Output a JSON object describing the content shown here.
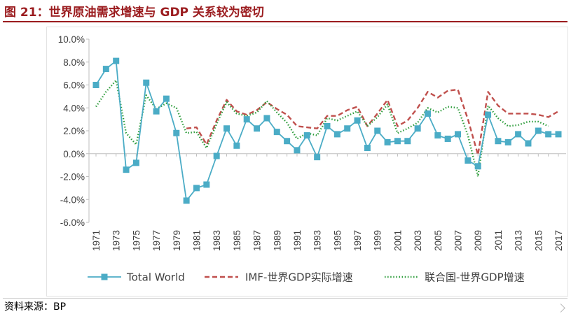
{
  "figure": {
    "title": "图 21：世界原油需求增速与 GDP 关系较为密切",
    "source": "资料来源：BP"
  },
  "colors": {
    "title": "#9b1c1f",
    "total_world": "#4bacc6",
    "imf": "#c0504d",
    "un": "#2e9d3c",
    "axis": "#bfbfbf"
  },
  "chart_data": {
    "type": "line",
    "title": "",
    "xlabel": "",
    "ylabel": "",
    "ylim": [
      -6,
      10
    ],
    "yticks": [
      "-6.0%",
      "-4.0%",
      "-2.0%",
      "0.0%",
      "2.0%",
      "4.0%",
      "6.0%",
      "8.0%",
      "10.0%"
    ],
    "ytick_values": [
      -6,
      -4,
      -2,
      0,
      2,
      4,
      6,
      8,
      10
    ],
    "grid": false,
    "legend_position": "bottom",
    "x": [
      1971,
      1972,
      1973,
      1974,
      1975,
      1976,
      1977,
      1978,
      1979,
      1980,
      1981,
      1982,
      1983,
      1984,
      1985,
      1986,
      1987,
      1988,
      1989,
      1990,
      1991,
      1992,
      1993,
      1994,
      1995,
      1996,
      1997,
      1998,
      1999,
      2000,
      2001,
      2002,
      2003,
      2004,
      2005,
      2006,
      2007,
      2008,
      2009,
      2010,
      2011,
      2012,
      2013,
      2014,
      2015,
      2016,
      2017
    ],
    "xtick_labels": [
      "1971",
      "1973",
      "1975",
      "1977",
      "1979",
      "1981",
      "1983",
      "1985",
      "1987",
      "1989",
      "1991",
      "1993",
      "1995",
      "1997",
      "1999",
      "2001",
      "2003",
      "2005",
      "2007",
      "2009",
      "2011",
      "2013",
      "2015",
      "2017"
    ],
    "series": [
      {
        "name": "Total World",
        "style": "solid-square",
        "values": [
          6.0,
          7.4,
          8.1,
          -1.4,
          -0.8,
          6.2,
          3.7,
          4.8,
          1.8,
          -4.1,
          -3.0,
          -2.7,
          -0.2,
          2.2,
          0.7,
          3.0,
          2.2,
          3.1,
          1.9,
          1.1,
          0.3,
          1.6,
          -0.3,
          2.4,
          1.7,
          2.2,
          2.9,
          0.5,
          2.0,
          1.0,
          1.1,
          1.1,
          2.2,
          3.5,
          1.6,
          1.3,
          1.7,
          -0.6,
          -1.1,
          3.4,
          1.1,
          1.0,
          1.7,
          0.9,
          2.0,
          1.7,
          1.7
        ]
      },
      {
        "name": "IMF-世界GDP实际增速",
        "style": "dashed",
        "values": [
          null,
          null,
          null,
          null,
          null,
          null,
          null,
          null,
          null,
          2.2,
          2.3,
          0.8,
          2.9,
          4.7,
          3.7,
          3.4,
          3.8,
          4.5,
          3.9,
          3.4,
          2.4,
          2.3,
          2.2,
          3.3,
          3.3,
          3.8,
          4.1,
          2.4,
          3.5,
          4.7,
          2.4,
          2.9,
          4.0,
          5.4,
          4.9,
          5.5,
          5.6,
          3.0,
          -0.1,
          5.4,
          4.2,
          3.5,
          3.5,
          3.5,
          3.4,
          3.2,
          3.7
        ]
      },
      {
        "name": "联合国-世界GDP增速",
        "style": "dotted",
        "values": [
          4.1,
          5.4,
          6.4,
          1.8,
          0.8,
          5.1,
          3.9,
          4.4,
          4.0,
          1.8,
          1.9,
          0.5,
          2.6,
          4.5,
          3.5,
          3.3,
          3.6,
          4.6,
          3.6,
          2.7,
          1.3,
          1.8,
          1.6,
          3.1,
          2.9,
          3.3,
          3.7,
          2.4,
          3.2,
          4.3,
          1.8,
          2.2,
          2.7,
          4.0,
          3.6,
          4.1,
          4.0,
          1.6,
          -2.0,
          4.2,
          3.1,
          2.4,
          2.5,
          2.8,
          2.8,
          2.4,
          null
        ]
      }
    ]
  }
}
